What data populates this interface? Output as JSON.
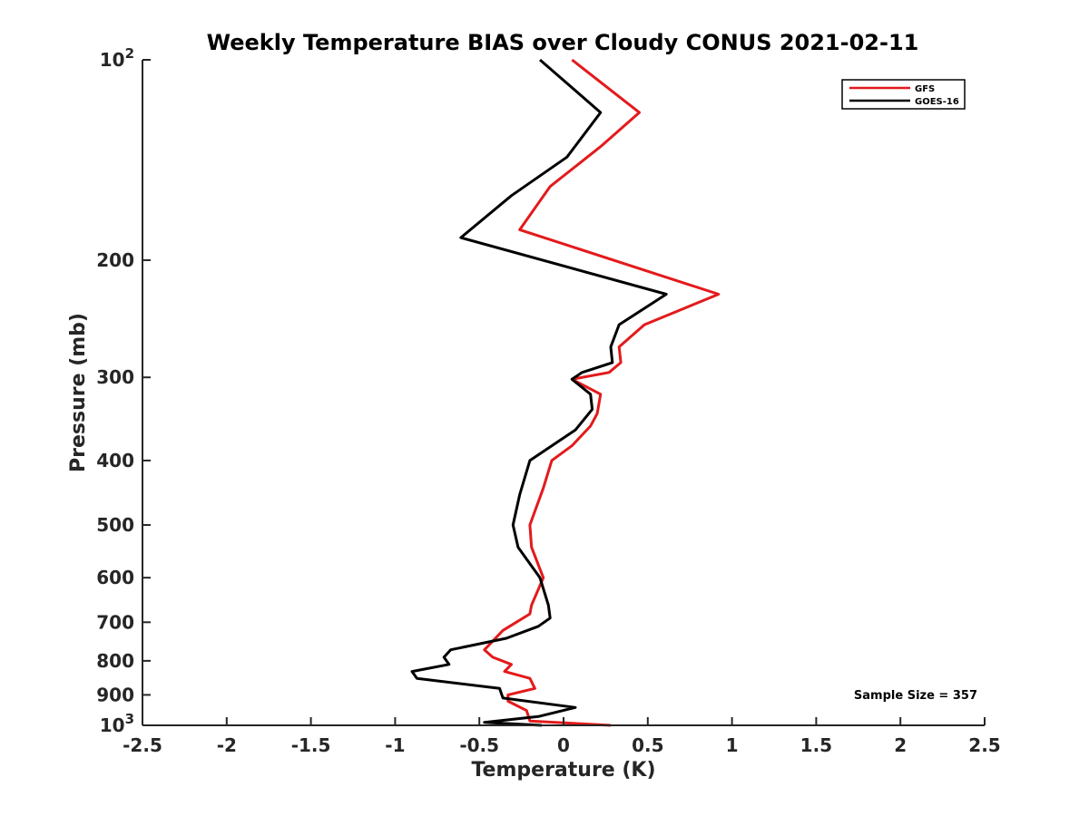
{
  "chart_data": {
    "type": "line",
    "title": "Weekly Temperature BIAS over Cloudy CONUS 2021-02-11",
    "xlabel": "Temperature (K)",
    "ylabel": "Pressure (mb)",
    "xlim": [
      -2.5,
      2.5
    ],
    "ylim": [
      1000,
      100
    ],
    "yscale": "log",
    "y_reversed": true,
    "x_ticks": [
      "-2.5",
      "-2",
      "-1.5",
      "-1",
      "-0.5",
      "0",
      "0.5",
      "1",
      "1.5",
      "2",
      "2.5"
    ],
    "y_ticks": [
      {
        "value": 100,
        "base": "10",
        "exp": "2"
      },
      {
        "value": 200,
        "label": "200"
      },
      {
        "value": 300,
        "label": "300"
      },
      {
        "value": 400,
        "label": "400"
      },
      {
        "value": 500,
        "label": "500"
      },
      {
        "value": 600,
        "label": "600"
      },
      {
        "value": 700,
        "label": "700"
      },
      {
        "value": 800,
        "label": "800"
      },
      {
        "value": 900,
        "label": "900"
      },
      {
        "value": 1000,
        "base": "10",
        "exp": "3"
      }
    ],
    "grid": false,
    "legend_position": "top-right",
    "annotation": "Sample Size = 357",
    "series": [
      {
        "name": "GFS",
        "color": "#e31a1c",
        "x": [
          0.05,
          0.45,
          0.22,
          -0.08,
          -0.26,
          0.92,
          0.48,
          0.33,
          0.34,
          0.27,
          0.05,
          0.22,
          0.2,
          0.16,
          0.05,
          -0.07,
          -0.12,
          -0.2,
          -0.19,
          -0.12,
          -0.19,
          -0.2,
          -0.36,
          -0.47,
          -0.42,
          -0.31,
          -0.35,
          -0.2,
          -0.17,
          -0.33,
          -0.33,
          -0.22,
          -0.2,
          0.28
        ],
        "y": [
          100,
          120,
          135,
          155,
          180,
          225,
          250,
          270,
          285,
          295,
          302,
          318,
          340,
          355,
          380,
          400,
          440,
          500,
          540,
          600,
          660,
          680,
          720,
          770,
          790,
          810,
          830,
          850,
          880,
          900,
          920,
          950,
          985,
          1000
        ]
      },
      {
        "name": "GOES-16",
        "color": "#000000",
        "x": [
          -0.14,
          0.22,
          0.02,
          -0.31,
          -0.61,
          0.61,
          0.33,
          0.28,
          0.29,
          0.11,
          0.05,
          0.16,
          0.17,
          0.07,
          -0.2,
          -0.26,
          -0.3,
          -0.27,
          -0.14,
          -0.09,
          -0.08,
          -0.15,
          -0.34,
          -0.67,
          -0.71,
          -0.68,
          -0.9,
          -0.87,
          -0.38,
          -0.36,
          0.07,
          -0.15,
          -0.47,
          -0.13
        ],
        "y": [
          100,
          120,
          140,
          160,
          185,
          225,
          250,
          270,
          285,
          295,
          302,
          318,
          335,
          360,
          400,
          450,
          500,
          540,
          600,
          660,
          690,
          710,
          740,
          770,
          790,
          810,
          830,
          850,
          880,
          910,
          940,
          970,
          990,
          1000
        ]
      }
    ]
  }
}
